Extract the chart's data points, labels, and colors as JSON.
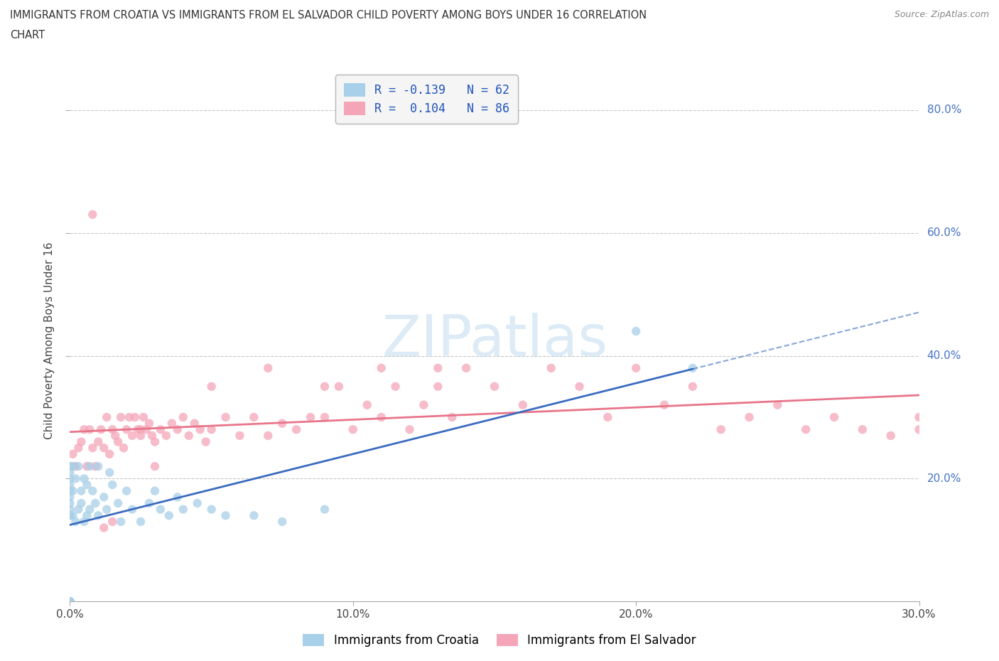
{
  "title_line1": "IMMIGRANTS FROM CROATIA VS IMMIGRANTS FROM EL SALVADOR CHILD POVERTY AMONG BOYS UNDER 16 CORRELATION",
  "title_line2": "CHART",
  "source": "Source: ZipAtlas.com",
  "ylabel": "Child Poverty Among Boys Under 16",
  "xlim": [
    0.0,
    0.3
  ],
  "ylim": [
    0.0,
    0.85
  ],
  "xtick_labels": [
    "0.0%",
    "10.0%",
    "20.0%",
    "30.0%"
  ],
  "xtick_vals": [
    0.0,
    0.1,
    0.2,
    0.3
  ],
  "ytick_labels": [
    "20.0%",
    "40.0%",
    "60.0%",
    "80.0%"
  ],
  "ytick_vals": [
    0.2,
    0.4,
    0.6,
    0.8
  ],
  "legend_r1_text": "R = -0.139   N = 62",
  "legend_r2_text": "R =  0.104   N = 86",
  "croatia_color": "#a8d0e8",
  "el_salvador_color": "#f4a6b8",
  "croatia_line_color": "#3a6bbf",
  "el_salvador_line_color": "#e8758a",
  "croatia_line_dash": "solid",
  "el_salvador_line_dash": "solid",
  "background_color": "#ffffff",
  "grid_color": "#c8c8c8",
  "watermark_text": "ZIPatlas",
  "watermark_color": "#c5dff0",
  "legend_box_color": "#f5f5f5",
  "legend_edge_color": "#bbbbbb",
  "croatia_x": [
    0.0,
    0.0,
    0.0,
    0.0,
    0.0,
    0.0,
    0.0,
    0.0,
    0.0,
    0.0,
    0.0,
    0.0,
    0.0,
    0.0,
    0.0,
    0.0,
    0.0,
    0.0,
    0.0,
    0.0,
    0.001,
    0.001,
    0.001,
    0.002,
    0.002,
    0.003,
    0.003,
    0.004,
    0.004,
    0.005,
    0.005,
    0.006,
    0.006,
    0.007,
    0.007,
    0.008,
    0.009,
    0.01,
    0.01,
    0.012,
    0.013,
    0.014,
    0.015,
    0.017,
    0.018,
    0.02,
    0.022,
    0.025,
    0.028,
    0.03,
    0.032,
    0.035,
    0.038,
    0.04,
    0.045,
    0.05,
    0.055,
    0.065,
    0.075,
    0.09,
    0.2,
    0.22
  ],
  "croatia_y": [
    0.0,
    0.0,
    0.0,
    0.0,
    0.0,
    0.0,
    0.0,
    0.0,
    0.0,
    0.0,
    0.14,
    0.14,
    0.15,
    0.16,
    0.17,
    0.18,
    0.19,
    0.2,
    0.21,
    0.22,
    0.14,
    0.18,
    0.22,
    0.13,
    0.2,
    0.15,
    0.22,
    0.16,
    0.18,
    0.13,
    0.2,
    0.14,
    0.19,
    0.15,
    0.22,
    0.18,
    0.16,
    0.14,
    0.22,
    0.17,
    0.15,
    0.21,
    0.19,
    0.16,
    0.13,
    0.18,
    0.15,
    0.13,
    0.16,
    0.18,
    0.15,
    0.14,
    0.17,
    0.15,
    0.16,
    0.15,
    0.14,
    0.14,
    0.13,
    0.15,
    0.44,
    0.38
  ],
  "el_salvador_x": [
    0.0,
    0.001,
    0.002,
    0.003,
    0.004,
    0.005,
    0.006,
    0.007,
    0.008,
    0.009,
    0.01,
    0.011,
    0.012,
    0.013,
    0.014,
    0.015,
    0.016,
    0.017,
    0.018,
    0.019,
    0.02,
    0.021,
    0.022,
    0.023,
    0.024,
    0.025,
    0.026,
    0.027,
    0.028,
    0.029,
    0.03,
    0.032,
    0.034,
    0.036,
    0.038,
    0.04,
    0.042,
    0.044,
    0.046,
    0.048,
    0.05,
    0.055,
    0.06,
    0.065,
    0.07,
    0.075,
    0.08,
    0.085,
    0.09,
    0.095,
    0.1,
    0.105,
    0.11,
    0.115,
    0.12,
    0.125,
    0.13,
    0.135,
    0.14,
    0.15,
    0.16,
    0.17,
    0.18,
    0.19,
    0.2,
    0.21,
    0.22,
    0.23,
    0.24,
    0.25,
    0.26,
    0.27,
    0.28,
    0.29,
    0.3,
    0.3,
    0.13,
    0.09,
    0.11,
    0.07,
    0.05,
    0.03,
    0.025,
    0.015,
    0.012,
    0.008
  ],
  "el_salvador_y": [
    0.22,
    0.24,
    0.22,
    0.25,
    0.26,
    0.28,
    0.22,
    0.28,
    0.25,
    0.22,
    0.26,
    0.28,
    0.25,
    0.3,
    0.24,
    0.28,
    0.27,
    0.26,
    0.3,
    0.25,
    0.28,
    0.3,
    0.27,
    0.3,
    0.28,
    0.27,
    0.3,
    0.28,
    0.29,
    0.27,
    0.26,
    0.28,
    0.27,
    0.29,
    0.28,
    0.3,
    0.27,
    0.29,
    0.28,
    0.26,
    0.28,
    0.3,
    0.27,
    0.3,
    0.27,
    0.29,
    0.28,
    0.3,
    0.3,
    0.35,
    0.28,
    0.32,
    0.3,
    0.35,
    0.28,
    0.32,
    0.35,
    0.3,
    0.38,
    0.35,
    0.32,
    0.38,
    0.35,
    0.3,
    0.38,
    0.32,
    0.35,
    0.28,
    0.3,
    0.32,
    0.28,
    0.3,
    0.28,
    0.27,
    0.28,
    0.3,
    0.38,
    0.35,
    0.38,
    0.38,
    0.35,
    0.22,
    0.28,
    0.13,
    0.12,
    0.63
  ]
}
